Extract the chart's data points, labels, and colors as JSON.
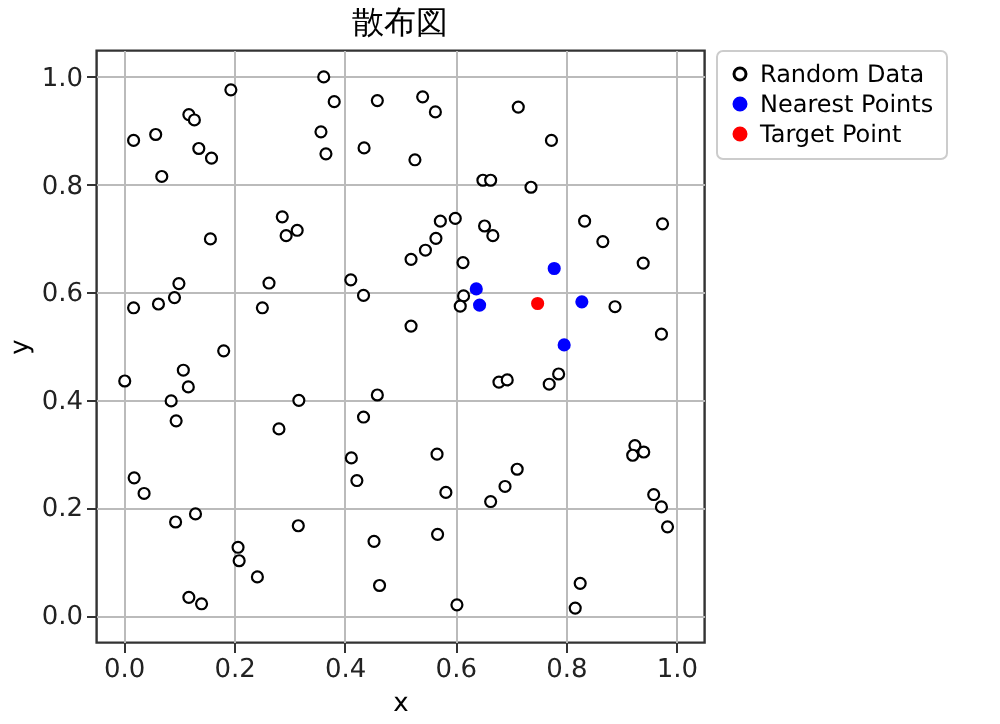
{
  "chart_data": {
    "type": "scatter",
    "title": "散布図",
    "xlabel": "x",
    "ylabel": "y",
    "xlim": [
      -0.05,
      1.05
    ],
    "ylim": [
      -0.05,
      1.05
    ],
    "xticks": [
      {
        "value": 0,
        "label": "0.0"
      },
      {
        "value": 0.2,
        "label": "0.2"
      },
      {
        "value": 0.4,
        "label": "0.4"
      },
      {
        "value": 0.6,
        "label": "0.6"
      },
      {
        "value": 0.8,
        "label": "0.8"
      },
      {
        "value": 1,
        "label": "1.0"
      }
    ],
    "yticks": [
      {
        "value": 0,
        "label": "0.0"
      },
      {
        "value": 0.2,
        "label": "0.2"
      },
      {
        "value": 0.4,
        "label": "0.4"
      },
      {
        "value": 0.6,
        "label": "0.6"
      },
      {
        "value": 0.8,
        "label": "0.8"
      },
      {
        "value": 1,
        "label": "1.0"
      }
    ],
    "grid": true,
    "legend": "right",
    "marker": "circle",
    "series": [
      {
        "name": "Random Data",
        "color": "#000000",
        "x": [
          0.018,
          0.058,
          0.069,
          0.118,
          0.128,
          0.136,
          0.159,
          0.194,
          0.362,
          0.381,
          0.357,
          0.366,
          0.435,
          0.157,
          0.287,
          0.294,
          0.314,
          0.018,
          0.063,
          0.092,
          0.1,
          0.263,
          0.251,
          0.411,
          0.434,
          0.181,
          0.459,
          0.541,
          0.564,
          0.527,
          0.714,
          0.774,
          0.65,
          0.664,
          0.737,
          0.573,
          0.6,
          0.653,
          0.668,
          0.834,
          0.975,
          0.867,
          0.565,
          0.546,
          0.52,
          0.614,
          0.94,
          0.615,
          0.609,
          0.52,
          0.889,
          0.973,
          0.002,
          0.108,
          0.117,
          0.086,
          0.095,
          0.317,
          0.281,
          0.459,
          0.434,
          0.412,
          0.422,
          0.019,
          0.037,
          0.094,
          0.13,
          0.316,
          0.207,
          0.209,
          0.242,
          0.118,
          0.141,
          0.453,
          0.463,
          0.679,
          0.694,
          0.77,
          0.787,
          0.567,
          0.583,
          0.712,
          0.69,
          0.664,
          0.568,
          0.603,
          0.826,
          0.817,
          0.925,
          0.921,
          0.941,
          0.959,
          0.973,
          0.984
        ],
        "values": [
          0.882,
          0.893,
          0.815,
          0.93,
          0.92,
          0.867,
          0.849,
          0.976,
          1.0,
          0.954,
          0.898,
          0.857,
          0.868,
          0.699,
          0.74,
          0.705,
          0.715,
          0.571,
          0.578,
          0.59,
          0.616,
          0.617,
          0.571,
          0.623,
          0.594,
          0.491,
          0.956,
          0.963,
          0.935,
          0.846,
          0.944,
          0.882,
          0.808,
          0.808,
          0.795,
          0.732,
          0.737,
          0.723,
          0.705,
          0.732,
          0.727,
          0.694,
          0.7,
          0.678,
          0.661,
          0.655,
          0.654,
          0.593,
          0.574,
          0.537,
          0.573,
          0.522,
          0.435,
          0.455,
          0.424,
          0.398,
          0.361,
          0.399,
          0.346,
          0.409,
          0.368,
          0.292,
          0.25,
          0.255,
          0.226,
          0.173,
          0.188,
          0.166,
          0.126,
          0.101,
          0.071,
          0.033,
          0.021,
          0.137,
          0.055,
          0.433,
          0.437,
          0.429,
          0.448,
          0.299,
          0.228,
          0.271,
          0.239,
          0.211,
          0.15,
          0.019,
          0.059,
          0.013,
          0.315,
          0.297,
          0.303,
          0.224,
          0.201,
          0.164
        ]
      },
      {
        "name": "Nearest Points",
        "color": "#0000ff",
        "x": [
          0.779,
          0.638,
          0.644,
          0.829,
          0.797
        ],
        "values": [
          0.644,
          0.606,
          0.576,
          0.582,
          0.502
        ]
      },
      {
        "name": "Target Point",
        "color": "#ff0000",
        "x": [
          0.749
        ],
        "values": [
          0.579
        ]
      }
    ]
  }
}
